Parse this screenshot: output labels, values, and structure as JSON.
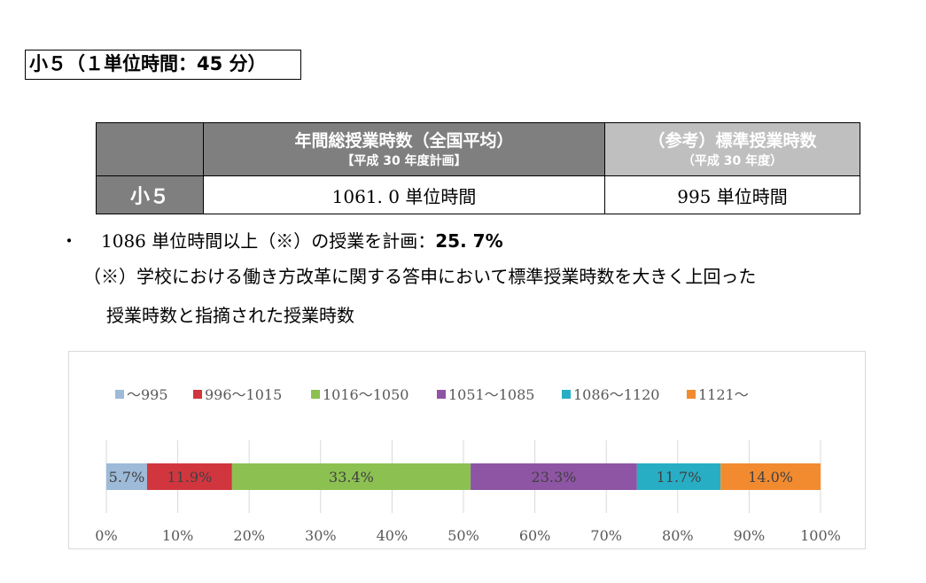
{
  "heading": "小５（１単位時間：45 分）",
  "table": {
    "header_main_line1": "年間総授業時数（全国平均）",
    "header_main_line2": "【平成 30 年度計画】",
    "header_ref_line1": "（参考）標準授業時数",
    "header_ref_line2": "（平成 30 年度）",
    "row_label": "小５",
    "value_main": "1061. 0 単位時間",
    "value_ref": "995 単位時間"
  },
  "bullet": {
    "mark": "・",
    "text": "1086 単位時間以上（※）の授業を計画：",
    "value": "25. 7%"
  },
  "note": {
    "line1": "（※）学校における働き方改革に関する答申において標準授業時数を大きく上回った",
    "line2": "授業時数と指摘された授業時数"
  },
  "chart_data": {
    "type": "bar",
    "orientation": "horizontal",
    "stacked": "percent",
    "categories": [
      ""
    ],
    "series": [
      {
        "name": "～995",
        "values": [
          5.7
        ],
        "color": "#9dbad8"
      },
      {
        "name": "996～1015",
        "values": [
          11.9
        ],
        "color": "#d1363f"
      },
      {
        "name": "1016～1050",
        "values": [
          33.4
        ],
        "color": "#8cc152"
      },
      {
        "name": "1051～1085",
        "values": [
          23.3
        ],
        "color": "#8e55a4"
      },
      {
        "name": "1086～1120",
        "values": [
          11.7
        ],
        "color": "#27aec4"
      },
      {
        "name": "1121～",
        "values": [
          14.0
        ],
        "color": "#f28b30"
      }
    ],
    "data_labels": [
      "5.7%",
      "11.9%",
      "33.4%",
      "23.3%",
      "11.7%",
      "14.0%"
    ],
    "xlim": [
      0,
      100
    ],
    "x_ticks": [
      "0%",
      "10%",
      "20%",
      "30%",
      "40%",
      "50%",
      "60%",
      "70%",
      "80%",
      "90%",
      "100%"
    ],
    "grid": true,
    "legend": "top"
  }
}
